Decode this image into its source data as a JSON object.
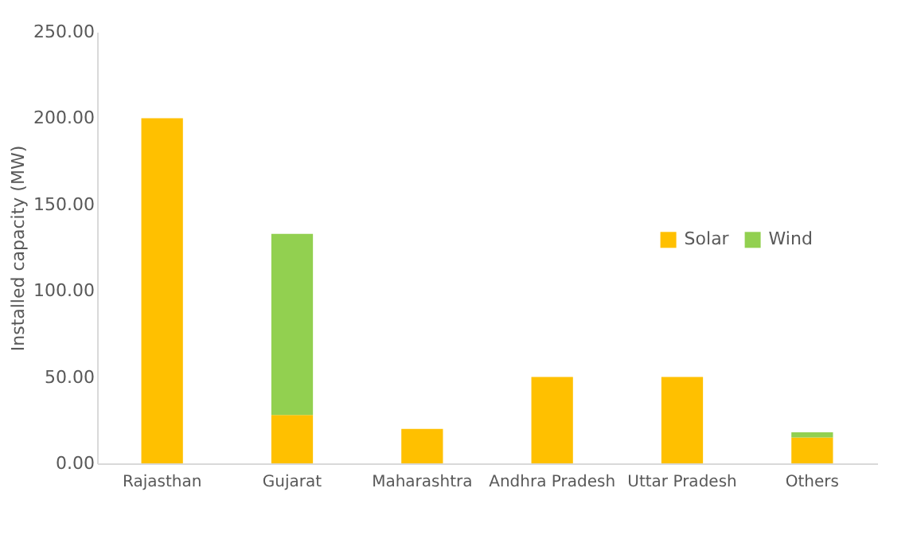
{
  "chart_data": {
    "type": "bar",
    "stacked": true,
    "ylabel": "Installed capacity (MW)",
    "categories": [
      "Rajasthan",
      "Gujarat",
      "Maharashtra",
      "Andhra Pradesh",
      "Uttar Pradesh",
      "Others"
    ],
    "series": [
      {
        "name": "Solar",
        "color": "#ffc000",
        "values": [
          200,
          28,
          20,
          50,
          50,
          15
        ]
      },
      {
        "name": "Wind",
        "color": "#92d050",
        "values": [
          0,
          105,
          0,
          0,
          0,
          3
        ]
      }
    ],
    "ylim": [
      0,
      250
    ],
    "yticks": [
      {
        "value": 0,
        "label": "0.00"
      },
      {
        "value": 50,
        "label": "50.00"
      },
      {
        "value": 100,
        "label": "100.00"
      },
      {
        "value": 150,
        "label": "150.00"
      },
      {
        "value": 200,
        "label": "200.00"
      },
      {
        "value": 250,
        "label": "250.00"
      }
    ],
    "grid": false,
    "legend": "right"
  }
}
